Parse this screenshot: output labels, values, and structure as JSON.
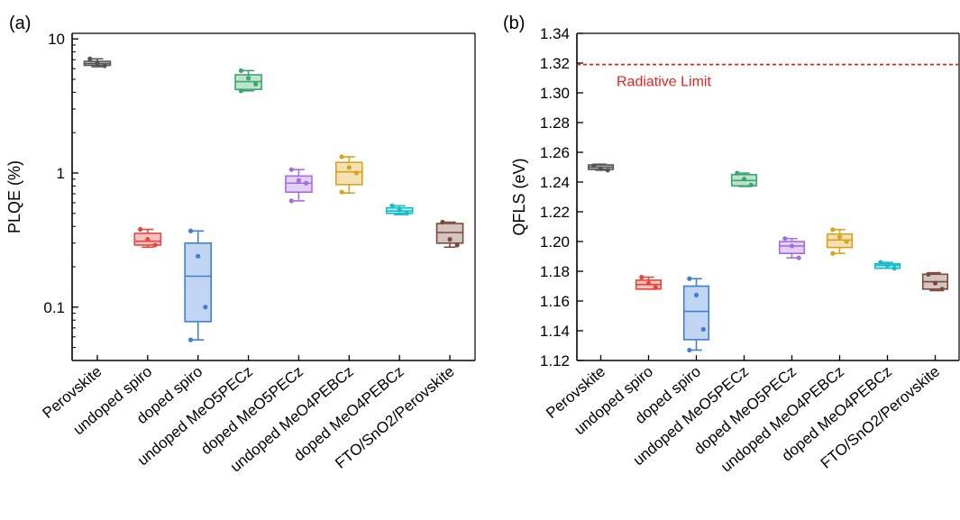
{
  "chart_data": [
    {
      "type": "box",
      "panel_label": "(a)",
      "ylabel": "PLQE (%)",
      "xlabel": "",
      "yscale": "log",
      "ylim": [
        0.04,
        11
      ],
      "ytick_values": [
        0.1,
        1,
        10
      ],
      "ytick_labels": [
        "0.1",
        "1",
        "10"
      ],
      "grid": false,
      "categories": [
        "Perovskite",
        "undoped spiro",
        "doped spiro",
        "undoped MeO5PECz",
        "doped MeO5PECz",
        "undoped MeO4PEBCz",
        "doped MeO4PEBCz",
        "FTO/SnO2/Perovskite"
      ],
      "colors": [
        "#555555",
        "#e8463c",
        "#3f7fd6",
        "#3aa76d",
        "#a66de0",
        "#d9a31a",
        "#19bcc9",
        "#7a4a3d"
      ],
      "boxes": [
        {
          "min": 6.2,
          "q1": 6.35,
          "median": 6.55,
          "q3": 6.8,
          "max": 7.1,
          "points": [
            7.1,
            6.6,
            6.3
          ]
        },
        {
          "min": 0.28,
          "q1": 0.29,
          "median": 0.31,
          "q3": 0.355,
          "max": 0.38,
          "points": [
            0.38,
            0.32,
            0.29
          ]
        },
        {
          "min": 0.057,
          "q1": 0.078,
          "median": 0.17,
          "q3": 0.3,
          "max": 0.37,
          "points": [
            0.37,
            0.24,
            0.1,
            0.057
          ]
        },
        {
          "min": 4.1,
          "q1": 4.2,
          "median": 4.8,
          "q3": 5.4,
          "max": 5.8,
          "points": [
            5.8,
            5.1,
            4.6,
            4.1
          ]
        },
        {
          "min": 0.62,
          "q1": 0.72,
          "median": 0.84,
          "q3": 0.95,
          "max": 1.06,
          "points": [
            1.06,
            0.88,
            0.84,
            0.62
          ]
        },
        {
          "min": 0.71,
          "q1": 0.82,
          "median": 1.02,
          "q3": 1.2,
          "max": 1.32,
          "points": [
            1.32,
            1.1,
            1.0,
            0.72
          ]
        },
        {
          "min": 0.49,
          "q1": 0.5,
          "median": 0.52,
          "q3": 0.55,
          "max": 0.57,
          "points": [
            0.57,
            0.53,
            0.5
          ]
        },
        {
          "min": 0.28,
          "q1": 0.3,
          "median": 0.36,
          "q3": 0.42,
          "max": 0.43,
          "points": [
            0.43,
            0.32,
            0.29
          ]
        }
      ]
    },
    {
      "type": "box",
      "panel_label": "(b)",
      "ylabel": "QFLS (eV)",
      "xlabel": "",
      "yscale": "linear",
      "ylim": [
        1.12,
        1.34
      ],
      "ytick_values": [
        1.12,
        1.14,
        1.16,
        1.18,
        1.2,
        1.22,
        1.24,
        1.26,
        1.28,
        1.3,
        1.32,
        1.34
      ],
      "ytick_labels": [
        "1.12",
        "1.14",
        "1.16",
        "1.18",
        "1.20",
        "1.22",
        "1.24",
        "1.26",
        "1.28",
        "1.30",
        "1.32",
        "1.34"
      ],
      "grid": false,
      "reference_line": {
        "value": 1.319,
        "label": "Radiative Limit",
        "color": "#e8221e"
      },
      "categories": [
        "Perovskite",
        "undoped spiro",
        "doped spiro",
        "undoped MeO5PECz",
        "doped MeO5PECz",
        "undoped MeO4PEBCz",
        "doped MeO4PEBCz",
        "FTO/SnO2/Perovskite"
      ],
      "colors": [
        "#555555",
        "#e8463c",
        "#3f7fd6",
        "#3aa76d",
        "#a66de0",
        "#d9a31a",
        "#19bcc9",
        "#7a4a3d"
      ],
      "boxes": [
        {
          "min": 1.248,
          "q1": 1.2485,
          "median": 1.25,
          "q3": 1.2515,
          "max": 1.252,
          "points": [
            1.251,
            1.249,
            1.248
          ]
        },
        {
          "min": 1.168,
          "q1": 1.168,
          "median": 1.171,
          "q3": 1.174,
          "max": 1.176,
          "points": [
            1.176,
            1.172,
            1.169
          ]
        },
        {
          "min": 1.127,
          "q1": 1.134,
          "median": 1.153,
          "q3": 1.17,
          "max": 1.175,
          "points": [
            1.175,
            1.164,
            1.141,
            1.127
          ]
        },
        {
          "min": 1.237,
          "q1": 1.2375,
          "median": 1.241,
          "q3": 1.245,
          "max": 1.246,
          "points": [
            1.246,
            1.242,
            1.238
          ]
        },
        {
          "min": 1.189,
          "q1": 1.192,
          "median": 1.197,
          "q3": 1.2,
          "max": 1.202,
          "points": [
            1.202,
            1.197,
            1.189
          ]
        },
        {
          "min": 1.192,
          "q1": 1.196,
          "median": 1.201,
          "q3": 1.205,
          "max": 1.208,
          "points": [
            1.208,
            1.203,
            1.2,
            1.192
          ]
        },
        {
          "min": 1.182,
          "q1": 1.182,
          "median": 1.184,
          "q3": 1.185,
          "max": 1.186,
          "points": [
            1.186,
            1.184,
            1.182
          ]
        },
        {
          "min": 1.167,
          "q1": 1.168,
          "median": 1.173,
          "q3": 1.178,
          "max": 1.179,
          "points": [
            1.178,
            1.172,
            1.168
          ]
        }
      ]
    }
  ]
}
